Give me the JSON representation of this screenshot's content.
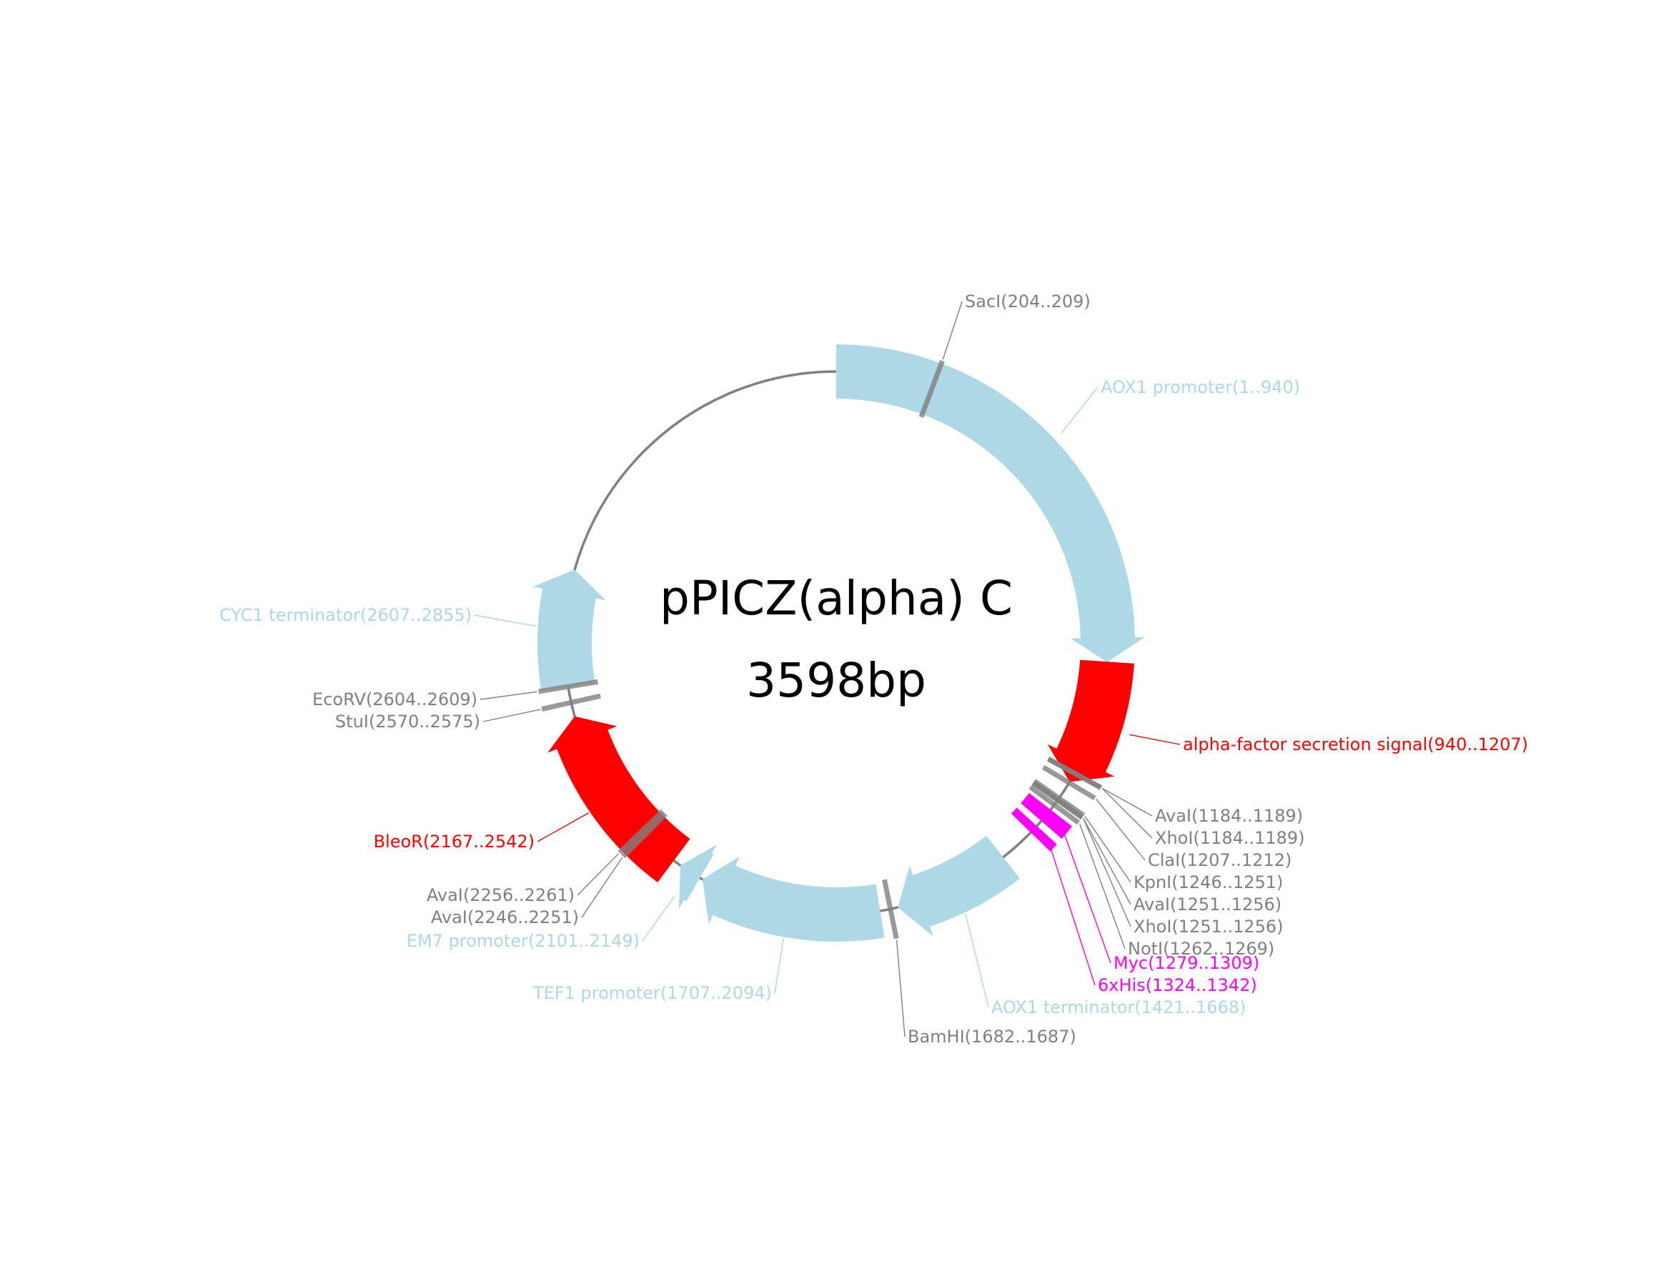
{
  "plasmid": {
    "name": "pPICZ(alpha) C",
    "length_label": "3598bp",
    "length_bp": 3598
  },
  "colors": {
    "backbone": "#808080",
    "promoter_terminator": "#add8e6",
    "cds_signal": "#ff0000",
    "tag": "#ff00ff",
    "site": "#808080"
  },
  "features": [
    {
      "id": "aox1-promoter",
      "label": "AOX1 promoter(1..940)",
      "start": 1,
      "end": 940,
      "strand": 1,
      "color": "#add8e6"
    },
    {
      "id": "alpha-factor",
      "label": "alpha-factor secretion signal(940..1207)",
      "start": 940,
      "end": 1207,
      "strand": 1,
      "color": "#ff0000"
    },
    {
      "id": "myc",
      "label": "Myc(1279..1309)",
      "start": 1279,
      "end": 1309,
      "strand": 0,
      "color": "#ff00ff"
    },
    {
      "id": "6xhis",
      "label": "6xHis(1324..1342)",
      "start": 1324,
      "end": 1342,
      "strand": 0,
      "color": "#ff00ff"
    },
    {
      "id": "aox1-terminator",
      "label": "AOX1 terminator(1421..1668)",
      "start": 1421,
      "end": 1668,
      "strand": 1,
      "color": "#add8e6"
    },
    {
      "id": "tef1-promoter",
      "label": "TEF1 promoter(1707..2094)",
      "start": 1707,
      "end": 2094,
      "strand": 1,
      "color": "#add8e6"
    },
    {
      "id": "em7-promoter",
      "label": "EM7 promoter(2101..2149)",
      "start": 2101,
      "end": 2149,
      "strand": 1,
      "color": "#add8e6"
    },
    {
      "id": "bleor",
      "label": "BleoR(2167..2542)",
      "start": 2167,
      "end": 2542,
      "strand": 1,
      "color": "#ff0000"
    },
    {
      "id": "cyc1-terminator",
      "label": "CYC1 terminator(2607..2855)",
      "start": 2607,
      "end": 2855,
      "strand": 1,
      "color": "#add8e6"
    }
  ],
  "sites": [
    {
      "id": "saci",
      "label": "SacI(204..209)",
      "pos": 206
    },
    {
      "id": "aval-1184",
      "label": "AvaI(1184..1189)",
      "pos": 1186
    },
    {
      "id": "xhoi-1184",
      "label": "XhoI(1184..1189)",
      "pos": 1186
    },
    {
      "id": "clai",
      "label": "ClaI(1207..1212)",
      "pos": 1209
    },
    {
      "id": "kpni",
      "label": "KpnI(1246..1251)",
      "pos": 1248
    },
    {
      "id": "aval-1251",
      "label": "AvaI(1251..1256)",
      "pos": 1253
    },
    {
      "id": "xhoi-1251",
      "label": "XhoI(1251..1256)",
      "pos": 1253
    },
    {
      "id": "noti",
      "label": "NotI(1262..1269)",
      "pos": 1265
    },
    {
      "id": "bamhi",
      "label": "BamHI(1682..1687)",
      "pos": 1684
    },
    {
      "id": "aval-2256",
      "label": "AvaI(2256..2261)",
      "pos": 2258
    },
    {
      "id": "aval-2246",
      "label": "AvaI(2246..2251)",
      "pos": 2248
    },
    {
      "id": "stui",
      "label": "StuI(2570..2575)",
      "pos": 2572
    },
    {
      "id": "ecorv",
      "label": "EcoRV(2604..2609)",
      "pos": 2606
    }
  ]
}
